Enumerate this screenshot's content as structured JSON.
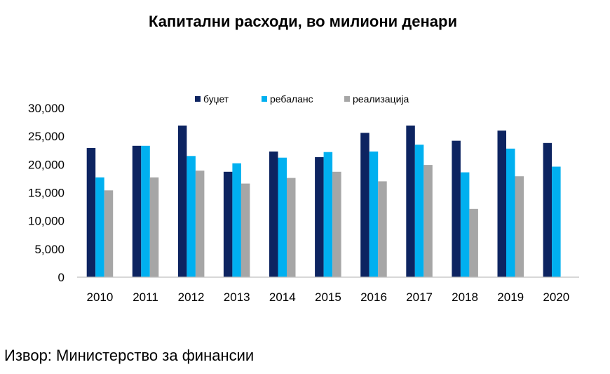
{
  "chart_data": {
    "type": "bar",
    "title": "Капитални расходи, во милиони денари",
    "categories": [
      "2010",
      "2011",
      "2012",
      "2013",
      "2014",
      "2015",
      "2016",
      "2017",
      "2018",
      "2019",
      "2020"
    ],
    "series": [
      {
        "name": "буџет",
        "color": "#0d2461",
        "values": [
          22900,
          23300,
          26900,
          18700,
          22300,
          21300,
          25600,
          26900,
          24200,
          26000,
          23800
        ]
      },
      {
        "name": "ребаланс",
        "color": "#00b0f0",
        "values": [
          17700,
          23300,
          21500,
          20200,
          21200,
          22200,
          22300,
          23500,
          18600,
          22800,
          19600
        ]
      },
      {
        "name": "реализација",
        "color": "#a6a6a6",
        "values": [
          15400,
          17700,
          18900,
          16600,
          17600,
          18700,
          17000,
          19900,
          12100,
          17900,
          null
        ]
      }
    ],
    "y_ticks": [
      "0",
      "5,000",
      "10,000",
      "15,000",
      "20,000",
      "25,000",
      "30,000"
    ],
    "ylim": [
      0,
      30000
    ],
    "xlabel": "",
    "ylabel": "",
    "grid": false,
    "legend_position": "top"
  },
  "source": "Извор: Министерство за финансии"
}
